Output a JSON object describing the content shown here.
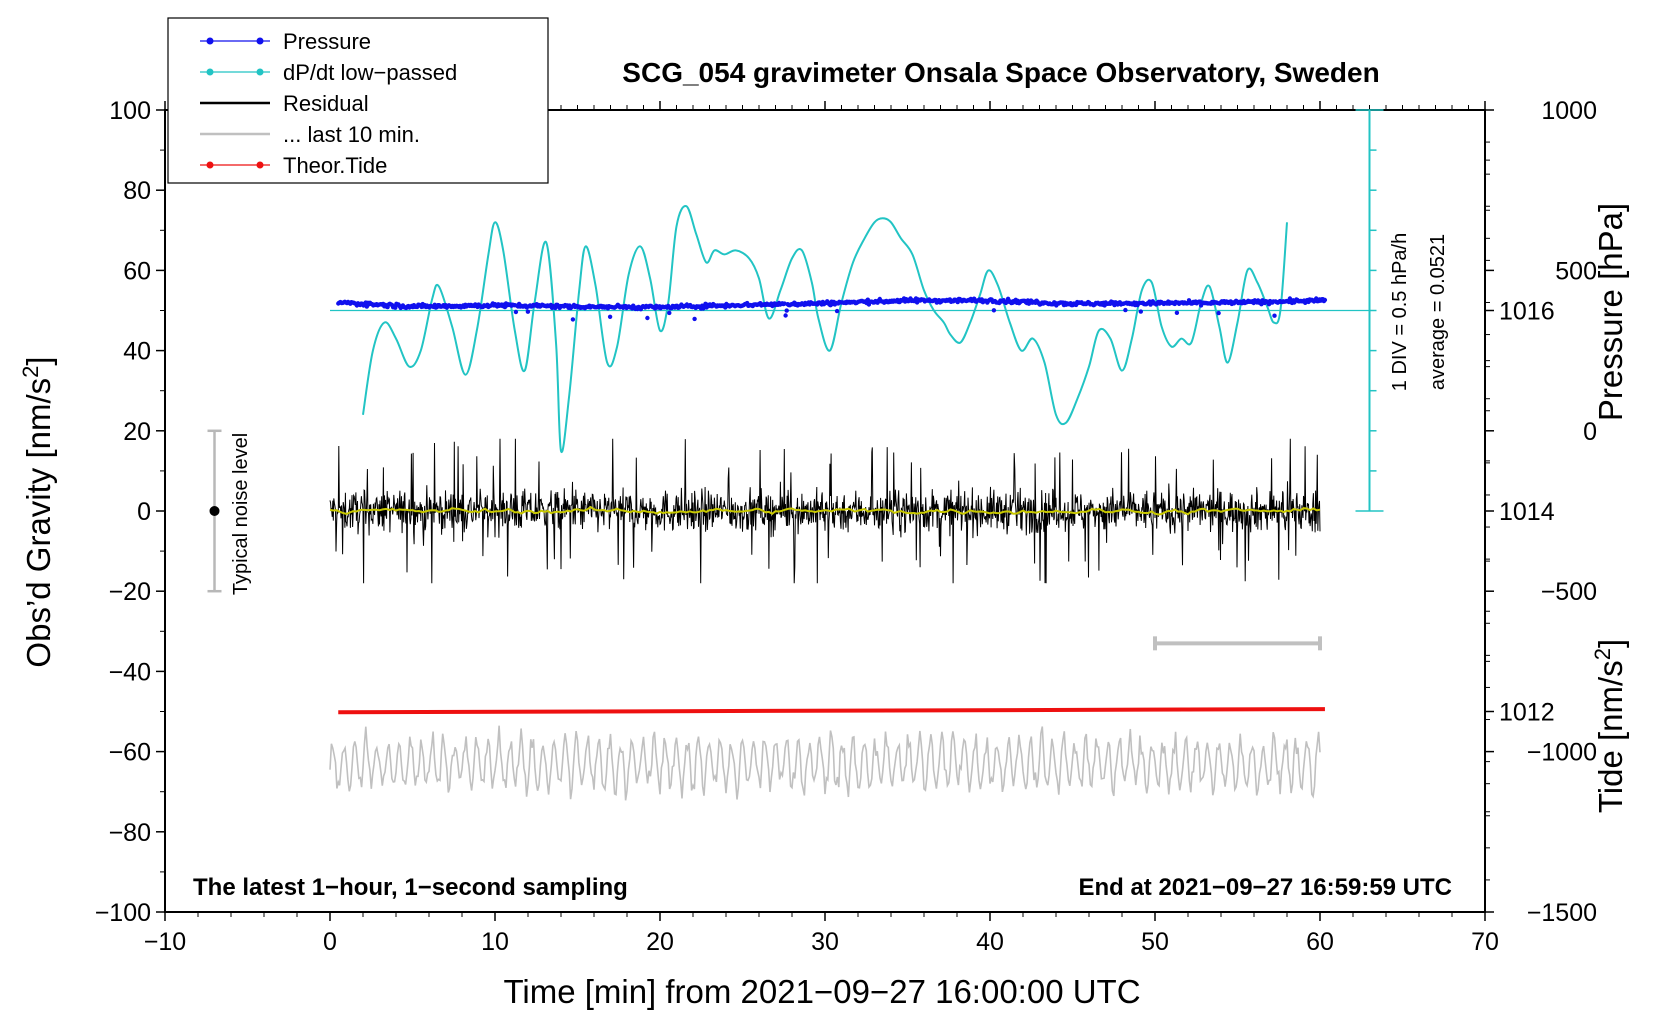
{
  "chart_data": {
    "type": "line",
    "title": "SCG_054 gravimeter Onsala Space Observatory, Sweden",
    "xlabel": "Time [min] from 2021−09−27 16:00:00 UTC",
    "ylabel_left_main": "Obs’d Gravity [nm/s",
    "ylabel_left_sup": "2",
    "ylabel_left_end": "]",
    "ylabel_right_pressure": "Pressure [hPa]",
    "ylabel_right_tide_main": "Tide [nm/s",
    "ylabel_right_tide_sup": "2",
    "ylabel_right_tide_end": "]",
    "xlim": [
      -10,
      70
    ],
    "ylim": [
      -100,
      100
    ],
    "pressure_ylim": [
      1010,
      1018
    ],
    "tide_ylim": [
      -1500,
      1000
    ],
    "x_ticks": [
      -10,
      0,
      10,
      20,
      30,
      40,
      50,
      60,
      70
    ],
    "x_tick_labels": [
      "−10",
      "0",
      "10",
      "20",
      "30",
      "40",
      "50",
      "60",
      "70"
    ],
    "y_ticks": [
      -100,
      -80,
      -60,
      -40,
      -20,
      0,
      20,
      40,
      60,
      80,
      100
    ],
    "y_tick_labels": [
      "−100",
      "−80",
      "−60",
      "−40",
      "−20",
      "0",
      "20",
      "40",
      "60",
      "80",
      "100"
    ],
    "pressure_ticks": [
      1012,
      1014,
      1016
    ],
    "pressure_tick_labels": [
      "1012",
      "1014",
      "1016"
    ],
    "tide_ticks": [
      -1500,
      -1000,
      -500,
      0,
      500,
      1000
    ],
    "tide_tick_labels": [
      "−1500",
      "−1000",
      "−500",
      "0",
      "500",
      "1000"
    ],
    "dpdt_scale_label": "1 DIV = 0.5 hPa/h",
    "dpdt_average_label": "average = 0.0521",
    "noise_label": "Typical noise level",
    "noise_level": {
      "x": -7,
      "y": 0,
      "range": [
        -20,
        20
      ]
    },
    "scale_bar_x": [
      50,
      60
    ],
    "scale_bar_y": -33,
    "footer_left": "The latest 1−hour, 1−second sampling",
    "footer_right": "End at 2021−09−27 16:59:59 UTC",
    "legend": [
      {
        "label": "Pressure",
        "color": "#1010ee",
        "marker": true
      },
      {
        "label": "dP/dt low−passed",
        "color": "#22c4c4",
        "marker": true
      },
      {
        "label": "Residual",
        "color": "#000000",
        "marker": false
      },
      {
        "label": "... last 10 min.",
        "color": "#c0c0c0",
        "marker": false
      },
      {
        "label": "Theor.Tide",
        "color": "#ee1010",
        "marker": true
      }
    ],
    "series": [
      {
        "name": "dP/dt low−passed",
        "color": "#22c4c4",
        "x": [
          2.0,
          2.6,
          3.3,
          4.0,
          4.8,
          5.5,
          6.2,
          6.6,
          7.4,
          8.2,
          8.9,
          9.6,
          10.0,
          10.5,
          11.2,
          11.8,
          12.4,
          13.1,
          13.7,
          14.0,
          14.5,
          15.1,
          15.5,
          16.1,
          16.8,
          17.4,
          18.1,
          18.8,
          19.4,
          20.0,
          20.5,
          21.0,
          21.6,
          22.2,
          22.8,
          23.3,
          23.9,
          24.6,
          25.4,
          26.0,
          26.6,
          27.3,
          28.0,
          28.6,
          29.2,
          29.6,
          30.3,
          31.0,
          31.7,
          32.4,
          33.0,
          33.5,
          34.0,
          34.6,
          35.3,
          36.0,
          36.6,
          37.2,
          37.6,
          38.2,
          38.8,
          39.4,
          39.9,
          40.5,
          41.2,
          41.9,
          42.6,
          43.3,
          44.0,
          44.6,
          45.3,
          46.0,
          46.6,
          47.3,
          48.0,
          48.6,
          49.2,
          49.8,
          50.4,
          51.0,
          51.6,
          52.2,
          52.8,
          53.3,
          53.9,
          54.4,
          55.0,
          55.6,
          56.2,
          56.8,
          57.2,
          57.6,
          58.0
        ],
        "y": [
          24,
          40,
          47,
          43,
          36,
          40,
          53,
          56,
          46,
          34,
          45,
          64,
          72,
          65,
          45,
          35,
          52,
          67,
          42,
          15,
          29,
          55,
          66,
          56,
          37,
          41,
          59,
          66,
          58,
          45,
          52,
          71,
          76,
          69,
          62,
          65,
          64,
          65,
          63,
          58,
          48,
          55,
          63,
          65,
          57,
          48,
          40,
          52,
          62,
          68,
          72,
          73,
          72,
          68,
          64,
          55,
          50,
          47,
          44,
          42,
          47,
          54,
          60,
          56,
          47,
          40,
          43,
          37,
          24,
          22,
          28,
          36,
          45,
          43,
          35,
          43,
          55,
          57,
          46,
          41,
          43,
          42,
          52,
          56,
          46,
          37,
          47,
          60,
          57,
          51,
          47,
          50,
          72
        ]
      },
      {
        "name": "Pressure",
        "color": "#1010ee",
        "x": [
          0.5,
          5,
          10,
          15,
          20,
          25,
          30,
          35,
          40,
          45,
          50,
          55,
          60.3
        ],
        "y": [
          52,
          51,
          51.3,
          51,
          50.8,
          51.4,
          51.8,
          52.5,
          52.5,
          51.7,
          51.8,
          52,
          52.5
        ]
      },
      {
        "name": "Residual",
        "color": "#000000",
        "x_range": [
          0,
          60
        ],
        "y_center": 0,
        "typical_amplitude": 5,
        "max_amplitude": 18
      },
      {
        "name": "Residual smoothed",
        "color": "#c8c800",
        "x_range": [
          0,
          60
        ],
        "y_center": 0,
        "typical_amplitude": 1
      },
      {
        "name": "... last 10 min.",
        "color": "#c0c0c0",
        "x_range": [
          0,
          60
        ],
        "y_center": -63,
        "typical_amplitude": 6,
        "max_amplitude": 13
      },
      {
        "name": "Theor.Tide",
        "color": "#ee1010",
        "x": [
          0.5,
          60.3
        ],
        "y": [
          -50.2,
          -49.4
        ]
      }
    ]
  }
}
